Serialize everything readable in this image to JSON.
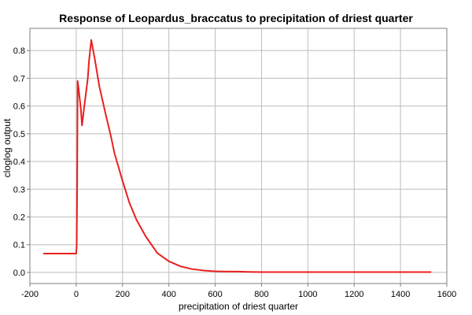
{
  "chart_data": {
    "type": "line",
    "title": "Response of Leopardus_braccatus to precipitation of driest quarter",
    "xlabel": "precipitation of driest quarter",
    "ylabel": "cloglog output",
    "xlim": [
      -200,
      1600
    ],
    "ylim": [
      -0.04,
      0.88
    ],
    "xticks": [
      -200,
      0,
      200,
      400,
      600,
      800,
      1000,
      1200,
      1400,
      1600
    ],
    "yticks": [
      0.0,
      0.1,
      0.2,
      0.3,
      0.4,
      0.5,
      0.6,
      0.7,
      0.8
    ],
    "ytick_labels": [
      "0.0",
      "0.1",
      "0.2",
      "0.3",
      "0.4",
      "0.5",
      "0.6",
      "0.7",
      "0.8"
    ],
    "grid": true,
    "series": [
      {
        "color": "#e8201e",
        "x": [
          -140,
          0,
          2,
          4,
          6,
          10,
          20,
          25,
          35,
          50,
          55,
          60,
          65,
          80,
          100,
          130,
          150,
          165,
          200,
          230,
          260,
          300,
          350,
          400,
          450,
          500,
          550,
          600,
          650,
          700,
          740,
          800,
          1000,
          1200,
          1400,
          1530
        ],
        "y": [
          0.068,
          0.068,
          0.1,
          0.3,
          0.69,
          0.665,
          0.59,
          0.53,
          0.6,
          0.7,
          0.76,
          0.8,
          0.838,
          0.77,
          0.67,
          0.56,
          0.49,
          0.43,
          0.33,
          0.25,
          0.19,
          0.13,
          0.07,
          0.04,
          0.022,
          0.012,
          0.007,
          0.004,
          0.003,
          0.003,
          0.002,
          0.001,
          0.001,
          0.001,
          0.001,
          0.001
        ]
      }
    ]
  }
}
